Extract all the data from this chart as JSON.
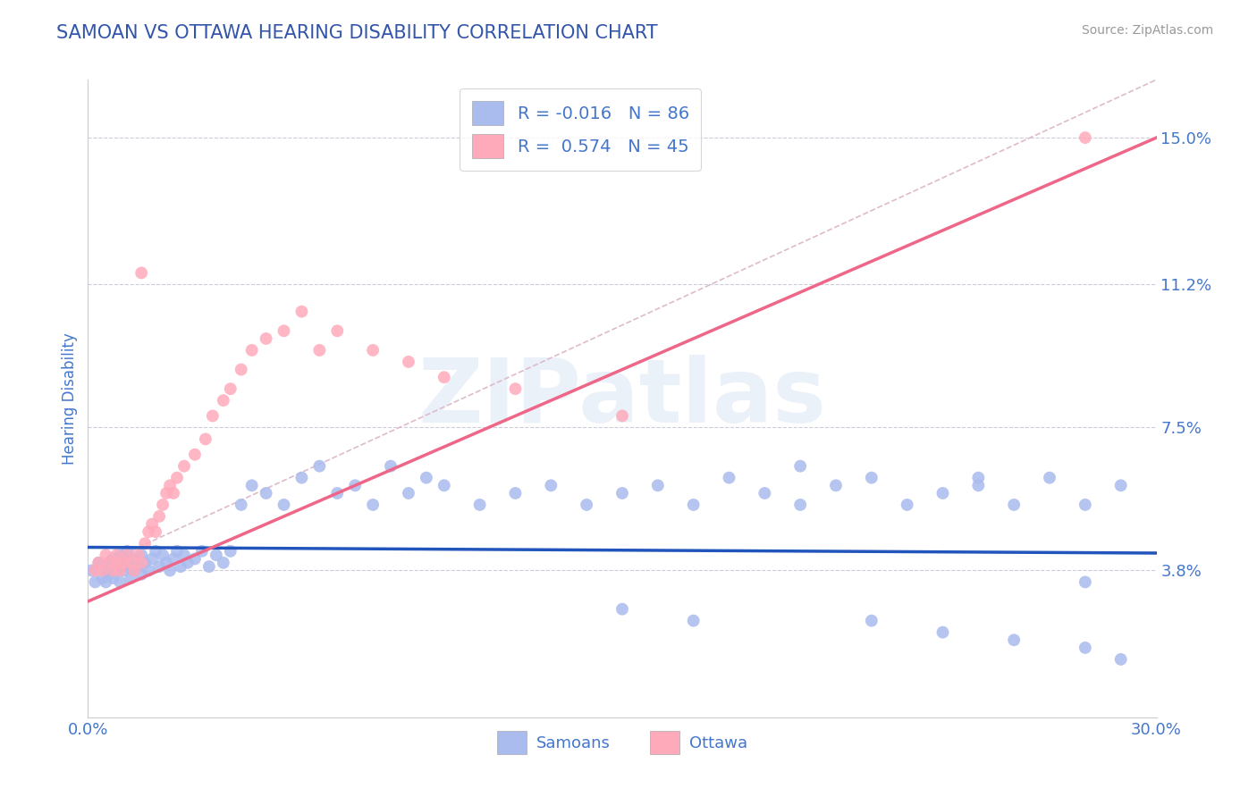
{
  "title": "SAMOAN VS OTTAWA HEARING DISABILITY CORRELATION CHART",
  "source": "Source: ZipAtlas.com",
  "ylabel": "Hearing Disability",
  "xlim": [
    0.0,
    0.3
  ],
  "ylim": [
    0.0,
    0.165
  ],
  "yticks": [
    0.038,
    0.075,
    0.112,
    0.15
  ],
  "ytick_labels": [
    "3.8%",
    "7.5%",
    "11.2%",
    "15.0%"
  ],
  "xticks": [
    0.0,
    0.3
  ],
  "xtick_labels": [
    "0.0%",
    "30.0%"
  ],
  "title_color": "#3355aa",
  "axis_color": "#4477cc",
  "background_color": "#ffffff",
  "samoans_color": "#aabbee",
  "ottawa_color": "#ffaabb",
  "samoans_line_color": "#2255bb",
  "ottawa_line_color": "#ee6688",
  "diagonal_line_color": "#ddbbcc",
  "samoan_R": -0.016,
  "ottawa_R": 0.574,
  "samoans_x": [
    0.001,
    0.002,
    0.003,
    0.004,
    0.005,
    0.005,
    0.006,
    0.006,
    0.007,
    0.007,
    0.008,
    0.008,
    0.009,
    0.009,
    0.01,
    0.01,
    0.011,
    0.011,
    0.012,
    0.012,
    0.013,
    0.013,
    0.014,
    0.015,
    0.015,
    0.016,
    0.017,
    0.018,
    0.019,
    0.02,
    0.021,
    0.022,
    0.023,
    0.024,
    0.025,
    0.026,
    0.027,
    0.028,
    0.03,
    0.032,
    0.034,
    0.036,
    0.038,
    0.04,
    0.043,
    0.046,
    0.05,
    0.055,
    0.06,
    0.065,
    0.07,
    0.075,
    0.08,
    0.085,
    0.09,
    0.095,
    0.1,
    0.11,
    0.12,
    0.13,
    0.14,
    0.15,
    0.16,
    0.17,
    0.18,
    0.19,
    0.2,
    0.21,
    0.22,
    0.23,
    0.24,
    0.25,
    0.26,
    0.27,
    0.28,
    0.29,
    0.2,
    0.25,
    0.28,
    0.15,
    0.17,
    0.22,
    0.24,
    0.26,
    0.28,
    0.29
  ],
  "samoans_y": [
    0.038,
    0.035,
    0.04,
    0.036,
    0.038,
    0.035,
    0.04,
    0.037,
    0.041,
    0.036,
    0.038,
    0.04,
    0.035,
    0.042,
    0.038,
    0.041,
    0.039,
    0.043,
    0.036,
    0.04,
    0.038,
    0.041,
    0.039,
    0.037,
    0.042,
    0.04,
    0.038,
    0.041,
    0.043,
    0.039,
    0.042,
    0.04,
    0.038,
    0.041,
    0.043,
    0.039,
    0.042,
    0.04,
    0.041,
    0.043,
    0.039,
    0.042,
    0.04,
    0.043,
    0.055,
    0.06,
    0.058,
    0.055,
    0.062,
    0.065,
    0.058,
    0.06,
    0.055,
    0.065,
    0.058,
    0.062,
    0.06,
    0.055,
    0.058,
    0.06,
    0.055,
    0.058,
    0.06,
    0.055,
    0.062,
    0.058,
    0.055,
    0.06,
    0.062,
    0.055,
    0.058,
    0.06,
    0.055,
    0.062,
    0.055,
    0.06,
    0.065,
    0.062,
    0.035,
    0.028,
    0.025,
    0.025,
    0.022,
    0.02,
    0.018,
    0.015
  ],
  "ottawa_x": [
    0.002,
    0.003,
    0.004,
    0.005,
    0.006,
    0.007,
    0.008,
    0.008,
    0.009,
    0.01,
    0.011,
    0.012,
    0.013,
    0.014,
    0.015,
    0.016,
    0.017,
    0.018,
    0.019,
    0.02,
    0.021,
    0.022,
    0.023,
    0.024,
    0.025,
    0.027,
    0.03,
    0.033,
    0.035,
    0.038,
    0.04,
    0.043,
    0.046,
    0.05,
    0.055,
    0.06,
    0.065,
    0.07,
    0.08,
    0.09,
    0.1,
    0.12,
    0.15,
    0.28,
    0.015
  ],
  "ottawa_y": [
    0.038,
    0.04,
    0.038,
    0.042,
    0.04,
    0.038,
    0.04,
    0.042,
    0.038,
    0.04,
    0.042,
    0.04,
    0.038,
    0.042,
    0.04,
    0.045,
    0.048,
    0.05,
    0.048,
    0.052,
    0.055,
    0.058,
    0.06,
    0.058,
    0.062,
    0.065,
    0.068,
    0.072,
    0.078,
    0.082,
    0.085,
    0.09,
    0.095,
    0.098,
    0.1,
    0.105,
    0.095,
    0.1,
    0.095,
    0.092,
    0.088,
    0.085,
    0.078,
    0.15,
    0.115
  ]
}
